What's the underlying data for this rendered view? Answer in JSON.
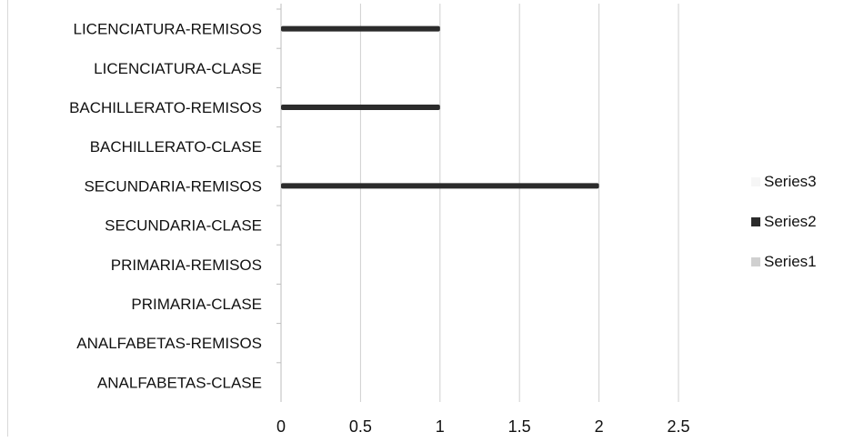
{
  "chart_data": {
    "type": "bar",
    "orientation": "horizontal",
    "stacked": true,
    "categories": [
      "LICENCIATURA-REMISOS",
      "LICENCIATURA-CLASE",
      "BACHILLERATO-REMISOS",
      "BACHILLERATO-CLASE",
      "SECUNDARIA-REMISOS",
      "SECUNDARIA-CLASE",
      "PRIMARIA-REMISOS",
      "PRIMARIA-CLASE",
      "ANALFABETAS-REMISOS",
      "ANALFABETAS-CLASE"
    ],
    "series": [
      {
        "name": "Series1",
        "color": "#d0d0d0",
        "values": [
          0,
          0,
          0,
          0,
          0,
          0,
          0,
          0,
          0,
          0
        ]
      },
      {
        "name": "Series2",
        "color": "#2b2b2b",
        "values": [
          1,
          0,
          1,
          0,
          2,
          0,
          0,
          0,
          0,
          0
        ]
      },
      {
        "name": "Series3",
        "color": "#f6f6f6",
        "values": [
          0,
          0,
          0,
          0,
          0,
          0,
          0,
          0,
          0,
          0
        ]
      }
    ],
    "xlim": [
      0,
      2.5
    ],
    "xticks": [
      "0",
      "0.5",
      "1",
      "1.5",
      "2",
      "2.5"
    ],
    "grid": true,
    "legend_position": "right",
    "legend_order": [
      "Series3",
      "Series2",
      "Series1"
    ],
    "title": "",
    "xlabel": "",
    "ylabel": ""
  }
}
